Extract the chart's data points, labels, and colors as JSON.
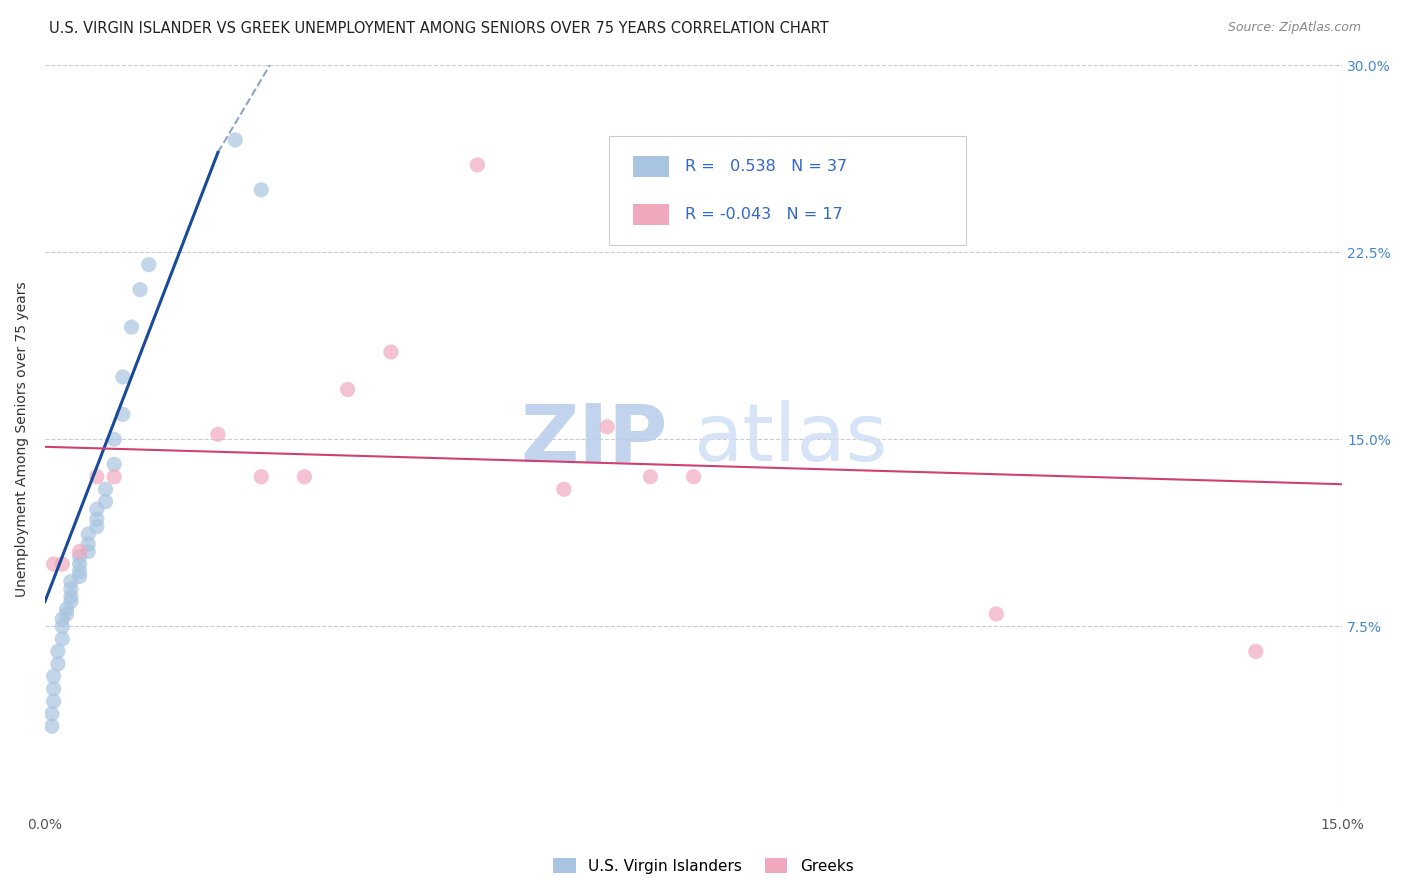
{
  "title": "U.S. VIRGIN ISLANDER VS GREEK UNEMPLOYMENT AMONG SENIORS OVER 75 YEARS CORRELATION CHART",
  "source": "Source: ZipAtlas.com",
  "ylabel": "Unemployment Among Seniors over 75 years",
  "xlim": [
    0,
    0.15
  ],
  "ylim": [
    0,
    0.3
  ],
  "background_color": "#ffffff",
  "grid_color": "#cccccc",
  "blue_color": "#a8c4e0",
  "blue_line_color": "#1a4a9a",
  "pink_color": "#f0a8bc",
  "pink_line_color": "#d04070",
  "watermark_color": "#c8d8f0",
  "title_fontsize": 10.5,
  "axis_label_fontsize": 10,
  "tick_fontsize": 10,
  "scatter_size": 120,
  "blue_scatter_x": [
    0.0008,
    0.0008,
    0.001,
    0.001,
    0.001,
    0.0015,
    0.0015,
    0.002,
    0.002,
    0.002,
    0.0025,
    0.0025,
    0.003,
    0.003,
    0.003,
    0.003,
    0.004,
    0.004,
    0.004,
    0.004,
    0.005,
    0.005,
    0.005,
    0.006,
    0.006,
    0.006,
    0.007,
    0.007,
    0.008,
    0.008,
    0.009,
    0.009,
    0.01,
    0.011,
    0.012,
    0.022,
    0.025
  ],
  "blue_scatter_y": [
    0.035,
    0.04,
    0.045,
    0.05,
    0.055,
    0.06,
    0.065,
    0.07,
    0.075,
    0.078,
    0.08,
    0.082,
    0.085,
    0.087,
    0.09,
    0.093,
    0.095,
    0.097,
    0.1,
    0.103,
    0.105,
    0.108,
    0.112,
    0.115,
    0.118,
    0.122,
    0.125,
    0.13,
    0.14,
    0.15,
    0.16,
    0.175,
    0.195,
    0.21,
    0.22,
    0.27,
    0.25
  ],
  "pink_scatter_x": [
    0.001,
    0.002,
    0.004,
    0.006,
    0.008,
    0.02,
    0.025,
    0.03,
    0.035,
    0.04,
    0.05,
    0.06,
    0.065,
    0.07,
    0.075,
    0.11,
    0.14
  ],
  "pink_scatter_y": [
    0.1,
    0.1,
    0.105,
    0.135,
    0.135,
    0.152,
    0.135,
    0.135,
    0.17,
    0.185,
    0.26,
    0.13,
    0.155,
    0.135,
    0.135,
    0.08,
    0.065
  ]
}
